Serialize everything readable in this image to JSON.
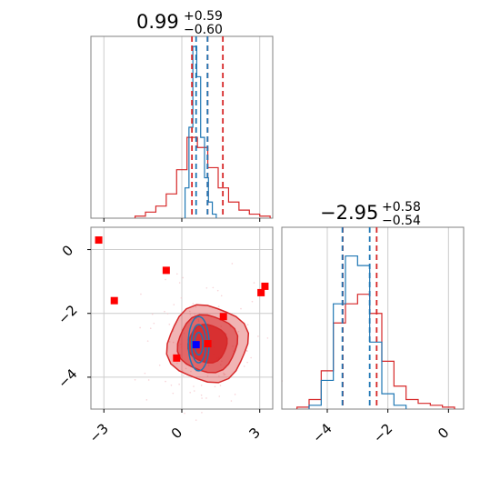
{
  "titles": {
    "top": {
      "value": "0.99",
      "plus": "+0.59",
      "minus": "−0.60"
    },
    "right": {
      "value": "−2.95",
      "plus": "+0.58",
      "minus": "−0.54"
    }
  },
  "colors": {
    "red": "#d62728",
    "blue": "#1f77b4",
    "grid": "#cccccc",
    "axis": "#808080",
    "marker_red": "#ff0000",
    "marker_blue": "#0000ff"
  },
  "chart_data": [
    {
      "type": "histogram",
      "panel": "param1-marginal",
      "xlim": [
        -3.5,
        3.5
      ],
      "dashed_lines_red": [
        0.39,
        0.99,
        1.58
      ],
      "dashed_lines_blue": [
        0.55,
        0.99
      ],
      "series": [
        {
          "color": "red",
          "bins_center": [
            -1.6,
            -1.2,
            -0.8,
            -0.4,
            0.0,
            0.4,
            0.8,
            1.2,
            1.6,
            2.0,
            2.4,
            2.8,
            3.2
          ],
          "values": [
            0.01,
            0.03,
            0.06,
            0.12,
            0.24,
            0.4,
            0.35,
            0.25,
            0.15,
            0.08,
            0.04,
            0.02,
            0.01
          ]
        },
        {
          "color": "blue",
          "bins_center": [
            0.2,
            0.35,
            0.5,
            0.65,
            0.8,
            0.95,
            1.1,
            1.25
          ],
          "values": [
            0.15,
            0.45,
            0.85,
            0.7,
            0.4,
            0.2,
            0.08,
            0.02
          ]
        }
      ]
    },
    {
      "type": "histogram",
      "panel": "param2-marginal",
      "xlim": [
        -5.5,
        0.5
      ],
      "xticks": [
        "−4",
        "−2",
        "0"
      ],
      "dashed_lines_red": [
        -3.49,
        -2.37
      ],
      "dashed_lines_blue": [
        -3.5,
        -2.6
      ],
      "series": [
        {
          "color": "red",
          "bins_center": [
            -4.8,
            -4.4,
            -4.0,
            -3.6,
            -3.2,
            -2.8,
            -2.4,
            -2.0,
            -1.6,
            -1.2,
            -0.8,
            -0.4,
            0.0
          ],
          "values": [
            0.01,
            0.05,
            0.2,
            0.45,
            0.55,
            0.6,
            0.5,
            0.25,
            0.12,
            0.05,
            0.03,
            0.02,
            0.01
          ]
        },
        {
          "color": "blue",
          "bins_center": [
            -4.4,
            -4.0,
            -3.6,
            -3.2,
            -2.8,
            -2.4,
            -2.0,
            -1.6
          ],
          "values": [
            0.02,
            0.15,
            0.55,
            0.8,
            0.75,
            0.35,
            0.08,
            0.02
          ]
        }
      ]
    },
    {
      "type": "scatter",
      "panel": "joint-contour",
      "xlim": [
        -3.5,
        3.5
      ],
      "ylim": [
        -5.0,
        0.7
      ],
      "xticks": [
        "−3",
        "0",
        "3"
      ],
      "yticks": [
        "0",
        "−2",
        "−4"
      ],
      "red_points": [
        [
          -3.2,
          0.3
        ],
        [
          -2.6,
          -1.6
        ],
        [
          -0.6,
          -0.65
        ],
        [
          -0.2,
          -3.4
        ],
        [
          1.0,
          -2.95
        ],
        [
          1.6,
          -2.1
        ],
        [
          3.05,
          -1.35
        ],
        [
          3.2,
          -1.15
        ]
      ],
      "blue_points": [
        [
          0.55,
          -2.98
        ]
      ]
    }
  ]
}
